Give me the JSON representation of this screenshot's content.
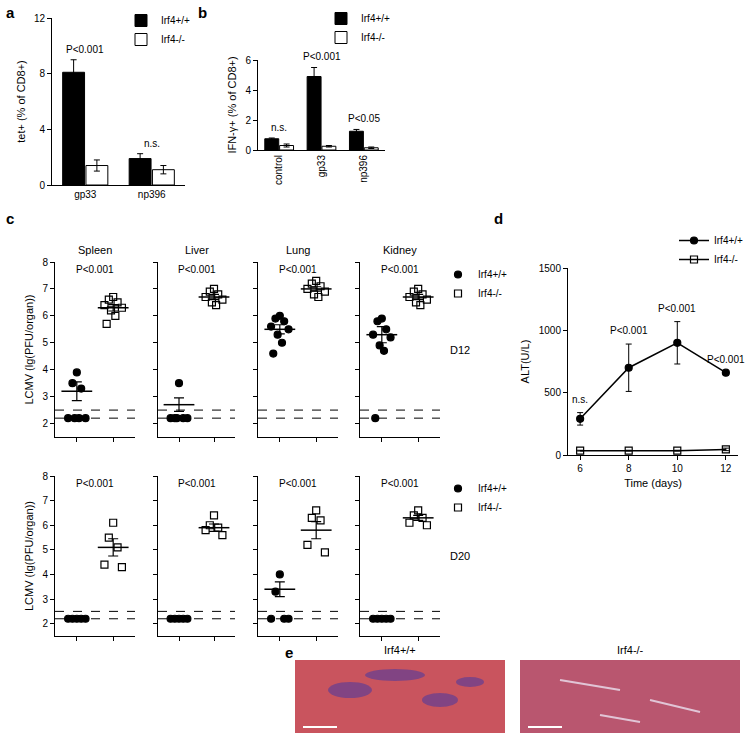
{
  "chart_data": [
    {
      "panel": "a",
      "type": "bar",
      "y_label": "tet+ (% of CD8+)",
      "categories": [
        "gp33",
        "np396"
      ],
      "series": [
        {
          "name": "Irf4+/+",
          "color": "#000000",
          "values": [
            8.1,
            1.9
          ],
          "errors": [
            0.9,
            0.35
          ]
        },
        {
          "name": "Irf4-/-",
          "color": "#ffffff",
          "values": [
            1.4,
            1.1
          ],
          "errors": [
            0.4,
            0.3
          ]
        }
      ],
      "ylim": [
        0,
        12
      ],
      "yticks": [
        0,
        4,
        8,
        12
      ],
      "grid": false,
      "legend": "top right",
      "annotations": [
        {
          "category": "gp33",
          "text": "P<0.001"
        },
        {
          "category": "np396",
          "text": "n.s."
        }
      ]
    },
    {
      "panel": "b",
      "type": "bar",
      "y_label": "IFN-γ+ (% of CD8+)",
      "categories": [
        "control",
        "gp33",
        "np396"
      ],
      "series": [
        {
          "name": "Irf4+/+",
          "color": "#000000",
          "values": [
            0.75,
            4.9,
            1.25
          ],
          "errors": [
            0.05,
            0.6,
            0.12
          ]
        },
        {
          "name": "Irf4-/-",
          "color": "#ffffff",
          "values": [
            0.3,
            0.25,
            0.15
          ],
          "errors": [
            0.1,
            0.05,
            0.05
          ]
        }
      ],
      "ylim": [
        0,
        6
      ],
      "yticks": [
        0,
        2,
        4,
        6
      ],
      "grid": false,
      "legend": "top right",
      "annotations": [
        {
          "category": "control",
          "text": "n.s."
        },
        {
          "category": "gp33",
          "text": "P<0.001"
        },
        {
          "category": "np396",
          "text": "P<0.05"
        }
      ]
    },
    {
      "panel": "c",
      "type": "scatter",
      "y_label": "LCMV (lg(PFU/organ))",
      "ylim": [
        1.5,
        8
      ],
      "yticks": [
        2,
        3,
        4,
        5,
        6,
        7,
        8
      ],
      "grid": false,
      "legend": "top right",
      "detection_limits": [
        2.2,
        2.5
      ],
      "series": [
        {
          "name": "Irf4+/+",
          "color": "#000000",
          "marker": "circle"
        },
        {
          "name": "Irf4-/-",
          "color": "#000000",
          "marker": "square-open"
        }
      ],
      "organs": [
        "Spleen",
        "Liver",
        "Lung",
        "Kidney"
      ],
      "days": [
        {
          "label": "D12",
          "panels": [
            {
              "p": "P<0.001",
              "values": [
                [
                  3.9,
                  3.5,
                  3.3,
                  2.2,
                  2.2,
                  2.2,
                  2.2
                ],
                [
                  6.7,
                  6.6,
                  6.5,
                  6.4,
                  6.3,
                  6.2,
                  6.0,
                  5.7
                ]
              ],
              "means": [
                3.2,
                6.3
              ],
              "errors": [
                0.35,
                0.12
              ]
            },
            {
              "p": "P<0.001",
              "values": [
                [
                  3.5,
                  2.2,
                  2.2,
                  2.2,
                  2.2,
                  2.2
                ],
                [
                  7.0,
                  6.9,
                  6.8,
                  6.7,
                  6.6,
                  6.5,
                  6.4
                ]
              ],
              "means": [
                2.7,
                6.7
              ],
              "errors": [
                0.25,
                0.1
              ]
            },
            {
              "p": "P<0.001",
              "values": [
                [
                  6.0,
                  5.9,
                  5.8,
                  5.6,
                  5.5,
                  5.3,
                  5.0,
                  4.6
                ],
                [
                  7.3,
                  7.2,
                  7.1,
                  7.0,
                  6.9,
                  6.8,
                  6.7
                ]
              ],
              "means": [
                5.5,
                7.0
              ],
              "errors": [
                0.17,
                0.08
              ]
            },
            {
              "p": "P<0.001",
              "values": [
                [
                  5.9,
                  5.8,
                  5.5,
                  5.3,
                  5.2,
                  4.9,
                  4.7,
                  2.2
                ],
                [
                  7.0,
                  6.9,
                  6.8,
                  6.7,
                  6.6,
                  6.5,
                  6.4
                ]
              ],
              "means": [
                5.3,
                6.7
              ],
              "errors": [
                0.3,
                0.1
              ]
            }
          ]
        },
        {
          "label": "D20",
          "panels": [
            {
              "p": "P<0.001",
              "values": [
                [
                  2.2,
                  2.2,
                  2.2,
                  2.2,
                  2.2
                ],
                [
                  6.1,
                  5.5,
                  5.1,
                  4.4,
                  4.3
                ]
              ],
              "means": [
                null,
                5.1
              ],
              "errors": [
                null,
                0.35
              ]
            },
            {
              "p": "P<0.001",
              "values": [
                [
                  2.2,
                  2.2,
                  2.2,
                  2.2,
                  2.2
                ],
                [
                  6.4,
                  6.0,
                  5.9,
                  5.8,
                  5.6
                ]
              ],
              "means": [
                null,
                5.9
              ],
              "errors": [
                null,
                0.15
              ]
            },
            {
              "p": "P<0.001",
              "values": [
                [
                  4.0,
                  3.3,
                  2.2,
                  2.2,
                  2.2
                ],
                [
                  6.6,
                  6.3,
                  6.2,
                  5.2,
                  4.9
                ]
              ],
              "means": [
                3.4,
                5.8
              ],
              "errors": [
                0.3,
                0.35
              ]
            },
            {
              "p": "P<0.001",
              "values": [
                [
                  2.2,
                  2.2,
                  2.2,
                  2.2,
                  2.2
                ],
                [
                  6.6,
                  6.4,
                  6.3,
                  6.1,
                  6.0
                ]
              ],
              "means": [
                null,
                6.3
              ],
              "errors": [
                null,
                0.1
              ]
            }
          ]
        }
      ]
    },
    {
      "panel": "d",
      "type": "line",
      "x_label": "Time (days)",
      "y_label": "ALT(U/L)",
      "x": [
        6,
        8,
        10,
        12
      ],
      "series": [
        {
          "name": "Irf4+/+",
          "color": "#000000",
          "marker": "circle",
          "line_style": "solid",
          "values": [
            290,
            700,
            900,
            660
          ],
          "errors": [
            50,
            190,
            170,
            0
          ]
        },
        {
          "name": "Irf4-/-",
          "color": "#000000",
          "marker": "square-open",
          "line_style": "solid",
          "values": [
            35,
            35,
            35,
            45
          ],
          "errors": [
            3,
            3,
            3,
            10
          ]
        }
      ],
      "xlim": [
        5.5,
        12.5
      ],
      "xticks": [
        6,
        8,
        10,
        12
      ],
      "ylim": [
        0,
        1500
      ],
      "yticks": [
        0,
        500,
        1000,
        1500
      ],
      "grid": false,
      "legend": "top right",
      "annotations": [
        {
          "x": 6,
          "text": "n.s."
        },
        {
          "x": 8,
          "text": "P<0.001"
        },
        {
          "x": 10,
          "text": "P<0.001"
        },
        {
          "x": 12,
          "text": "P<0.001"
        }
      ]
    },
    {
      "panel": "e",
      "type": "image",
      "images": [
        {
          "label": "Irf4+/+"
        },
        {
          "label": "Irf4-/-"
        }
      ]
    }
  ]
}
